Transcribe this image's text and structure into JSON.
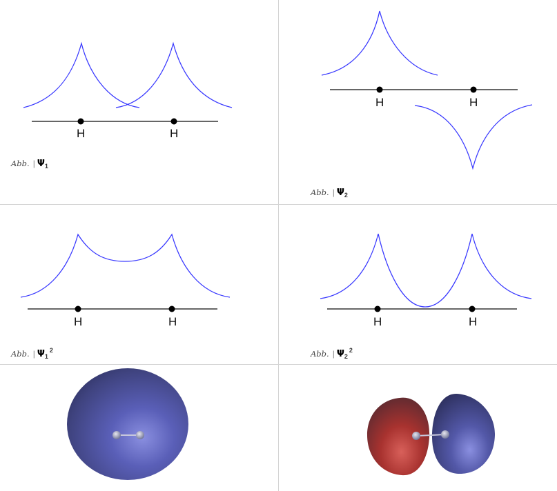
{
  "captions": {
    "abb": "Abb.",
    "sep": "|",
    "psi": "Ψ",
    "psi1": {
      "sub": "1",
      "sup": ""
    },
    "psi2": {
      "sub": "2",
      "sup": ""
    },
    "psi1sq": {
      "sub": "1",
      "sup": "2"
    },
    "psi2sq": {
      "sub": "2",
      "sup": "2"
    }
  },
  "atom_label": "H",
  "colors": {
    "curve": "#3a3aff",
    "axis": "#333333",
    "grid": "#d4d4d4",
    "orbital_blue": "#4a4f9c",
    "orbital_red": "#a8322f"
  },
  "figures": [
    {
      "id": "psi1",
      "type": "two-cusps-overlapping"
    },
    {
      "id": "psi2",
      "type": "cusps-opposite-sign"
    },
    {
      "id": "psi1sq",
      "type": "bonding-density"
    },
    {
      "id": "psi2sq",
      "type": "antibonding-density"
    },
    {
      "id": "orbital-bonding",
      "type": "3d-orbital-single-lobe"
    },
    {
      "id": "orbital-antibonding",
      "type": "3d-orbital-two-lobes"
    }
  ]
}
